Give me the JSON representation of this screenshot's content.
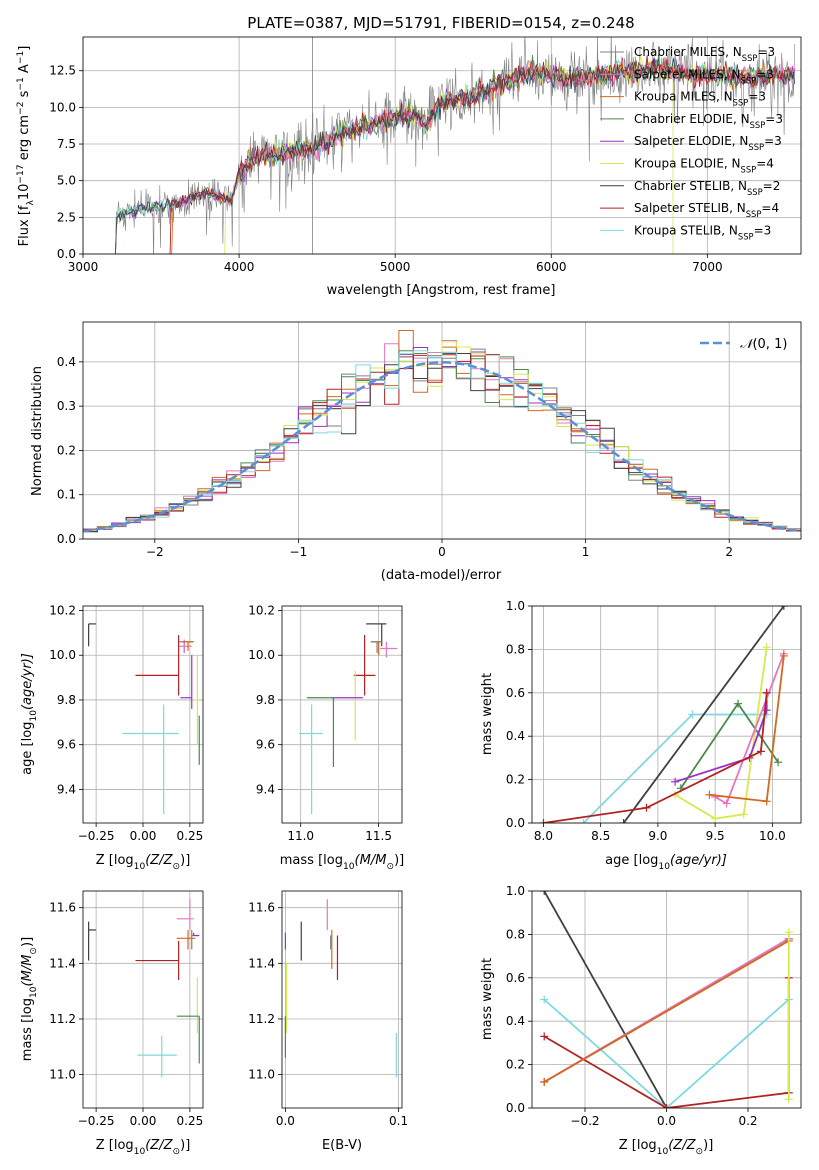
{
  "chart_data": [
    {
      "id": "spectrum",
      "type": "line",
      "title": "PLATE=0387, MJD=51791, FIBERID=0154, z=0.248",
      "xlabel": "wavelength [Angstrom, rest frame]",
      "ylabel": "Flux [f",
      "ylabel_sub": "λ",
      "ylabel_tail": "10",
      "ylabel_sup": "−17",
      "ylabel_end": " erg cm",
      "ylabel_sup2": "−2",
      "ylabel_end2": " s",
      "ylabel_sup3": "−1",
      "ylabel_end3": " A",
      "ylabel_sup4": "−1",
      "ylabel_close": "]",
      "xlim": [
        3000,
        7600
      ],
      "ylim": [
        0,
        14.8
      ],
      "xticks": [
        3000,
        4000,
        5000,
        6000,
        7000
      ],
      "yticks": [
        0.0,
        2.5,
        5.0,
        7.5,
        10.0,
        12.5
      ],
      "ytick_labels": [
        "0.0",
        "2.5",
        "5.0",
        "7.5",
        "10.0",
        "12.5"
      ],
      "continuum": [
        [
          3200,
          2.6
        ],
        [
          3400,
          3.1
        ],
        [
          3600,
          3.5
        ],
        [
          3800,
          4.2
        ],
        [
          3950,
          3.6
        ],
        [
          4000,
          5.6
        ],
        [
          4100,
          6.6
        ],
        [
          4300,
          6.9
        ],
        [
          4500,
          7.3
        ],
        [
          4700,
          8.5
        ],
        [
          4900,
          9.0
        ],
        [
          5100,
          9.6
        ],
        [
          5200,
          8.8
        ],
        [
          5300,
          10.4
        ],
        [
          5500,
          10.7
        ],
        [
          5700,
          11.8
        ],
        [
          5900,
          12.4
        ],
        [
          6100,
          11.9
        ],
        [
          6300,
          12.2
        ],
        [
          6500,
          12.5
        ],
        [
          6700,
          12.7
        ],
        [
          6900,
          12.3
        ],
        [
          7100,
          12.2
        ],
        [
          7300,
          12.0
        ],
        [
          7500,
          12.3
        ]
      ],
      "spike_wavelength": 4470,
      "series": [
        {
          "name": "Chabrier MILES, N",
          "sub": "SSP",
          "tail": "=3",
          "color": "#808080"
        },
        {
          "name": "Salpeter MILES, N",
          "sub": "SSP",
          "tail": "=3",
          "color": "#e377c2"
        },
        {
          "name": "Kroupa MILES, N",
          "sub": "SSP",
          "tail": "=3",
          "color": "#d2691e"
        },
        {
          "name": "Chabrier ELODIE, N",
          "sub": "SSP",
          "tail": "=3",
          "color": "#4a8a4a"
        },
        {
          "name": "Salpeter ELODIE, N",
          "sub": "SSP",
          "tail": "=3",
          "color": "#9b30c8"
        },
        {
          "name": "Kroupa ELODIE, N",
          "sub": "SSP",
          "tail": "=4",
          "color": "#d8e84e"
        },
        {
          "name": "Chabrier STELIB, N",
          "sub": "SSP",
          "tail": "=2",
          "color": "#404040"
        },
        {
          "name": "Salpeter STELIB, N",
          "sub": "SSP",
          "tail": "=4",
          "color": "#b22222"
        },
        {
          "name": "Kroupa STELIB, N",
          "sub": "SSP",
          "tail": "=3",
          "color": "#7fd8e0"
        }
      ]
    },
    {
      "id": "residuals",
      "type": "histogram",
      "xlabel": "(data-model)/error",
      "ylabel": "Normed distribution",
      "xlim": [
        -2.5,
        2.5
      ],
      "ylim": [
        0,
        0.49
      ],
      "xticks": [
        -2,
        -1,
        0,
        1,
        2
      ],
      "xtick_labels": [
        "−2",
        "−1",
        "0",
        "1",
        "2"
      ],
      "yticks": [
        0.0,
        0.1,
        0.2,
        0.3,
        0.4
      ],
      "ytick_labels": [
        "0.0",
        "0.1",
        "0.2",
        "0.3",
        "0.4"
      ],
      "legend": "N(0,1)",
      "legend_script": "𝒩",
      "legend_args": "(0, 1)",
      "legend_color": "#5b8fd6",
      "bin_width": 0.1
    },
    {
      "id": "age_vs_Z",
      "type": "errorbar",
      "xlabel": "Z [log",
      "xlabel_sub": "10",
      "xlabel_tail": "(Z/Z",
      "xlabel_sub2": "⊙",
      "xlabel_close": ")]",
      "ylabel": "age  [log",
      "ylabel_sub": "10",
      "ylabel_tail": "(age/yr)]",
      "xlim": [
        -0.32,
        0.32
      ],
      "ylim": [
        9.25,
        10.22
      ],
      "xticks": [
        -0.25,
        0.0,
        0.25
      ],
      "xtick_labels": [
        "−0.25",
        "0.00",
        "0.25"
      ],
      "yticks": [
        9.4,
        9.6,
        9.8,
        10.0,
        10.2
      ],
      "ytick_labels": [
        "9.4",
        "9.6",
        "9.8",
        "10.0",
        "10.2"
      ],
      "points": [
        {
          "x": -0.29,
          "xerr": [
            0.0,
            0.04
          ],
          "y": 10.14,
          "yerr": [
            0.1,
            0.0
          ],
          "color": "#404040"
        },
        {
          "x": 0.22,
          "xerr": [
            0.03,
            0.05
          ],
          "y": 10.06,
          "yerr": [
            0.05,
            0.0
          ],
          "color": "#808080"
        },
        {
          "x": 0.22,
          "xerr": [
            0.03,
            0.04
          ],
          "y": 10.04,
          "yerr": [
            0.03,
            0.03
          ],
          "color": "#e377c2"
        },
        {
          "x": 0.24,
          "xerr": [
            0.03,
            0.03
          ],
          "y": 10.06,
          "yerr": [
            0.04,
            0.0
          ],
          "color": "#d2691e"
        },
        {
          "x": 0.19,
          "xerr": [
            0.23,
            0.0
          ],
          "y": 9.91,
          "yerr": [
            0.09,
            0.18
          ],
          "color": "#b22222"
        },
        {
          "x": 0.26,
          "xerr": [
            0.06,
            0.0
          ],
          "y": 9.81,
          "yerr": [
            0.05,
            0.19
          ],
          "color": "#9b30c8"
        },
        {
          "x": 0.29,
          "xerr": [
            0.02,
            0.01
          ],
          "y": 9.8,
          "yerr": [
            0.2,
            0.2
          ],
          "color": "#d8e84e"
        },
        {
          "x": 0.3,
          "xerr": [
            0.0,
            0.0
          ],
          "y": 9.73,
          "yerr": [
            0.22,
            0.0
          ],
          "color": "#4a8a4a"
        },
        {
          "x": 0.11,
          "xerr": [
            0.22,
            0.08
          ],
          "y": 9.65,
          "yerr": [
            0.36,
            0.13
          ],
          "color": "#7fd8e0"
        }
      ]
    },
    {
      "id": "age_vs_mass",
      "type": "errorbar",
      "xlabel": "mass [log",
      "xlabel_sub": "10",
      "xlabel_tail": "(M/M",
      "xlabel_sub2": "⊙",
      "xlabel_close": ")]",
      "xlim": [
        10.88,
        11.65
      ],
      "ylim": [
        9.25,
        10.22
      ],
      "xticks": [
        11.0,
        11.5
      ],
      "xtick_labels": [
        "11.0",
        "11.5"
      ],
      "yticks": [
        9.4,
        9.6,
        9.8,
        10.0,
        10.2
      ],
      "ytick_labels": [
        "9.4",
        "9.6",
        "9.8",
        "10.0",
        "10.2"
      ],
      "points": [
        {
          "x": 11.52,
          "xerr": [
            0.1,
            0.03
          ],
          "y": 10.14,
          "yerr": [
            0.1,
            0.0
          ],
          "color": "#404040"
        },
        {
          "x": 11.55,
          "xerr": [
            0.04,
            0.07
          ],
          "y": 10.03,
          "yerr": [
            0.04,
            0.03
          ],
          "color": "#e377c2"
        },
        {
          "x": 11.5,
          "xerr": [
            0.05,
            0.02
          ],
          "y": 10.06,
          "yerr": [
            0.06,
            0.0
          ],
          "color": "#d2691e"
        },
        {
          "x": 11.49,
          "xerr": [
            0.04,
            0.03
          ],
          "y": 10.06,
          "yerr": [
            0.05,
            0.0
          ],
          "color": "#808080"
        },
        {
          "x": 11.41,
          "xerr": [
            0.07,
            0.07
          ],
          "y": 9.91,
          "yerr": [
            0.09,
            0.18
          ],
          "color": "#b22222"
        },
        {
          "x": 11.35,
          "xerr": [
            0.0,
            0.0
          ],
          "y": 9.93,
          "yerr": [
            0.31,
            0.0
          ],
          "color": "#d8e84e"
        },
        {
          "x": 11.3,
          "xerr": [
            0.1,
            0.1
          ],
          "y": 9.81,
          "yerr": [
            0.0,
            0.0
          ],
          "color": "#9b30c8"
        },
        {
          "x": 11.21,
          "xerr": [
            0.17,
            0.0
          ],
          "y": 9.81,
          "yerr": [
            0.31,
            0.0
          ],
          "color": "#4a8a4a"
        },
        {
          "x": 11.07,
          "xerr": [
            0.08,
            0.07
          ],
          "y": 9.65,
          "yerr": [
            0.36,
            0.13
          ],
          "color": "#7fd8e0"
        }
      ]
    },
    {
      "id": "massweight_vs_age",
      "type": "line",
      "xlabel": "age  [log",
      "xlabel_sub": "10",
      "xlabel_tail": "(age/yr)]",
      "ylabel": "mass weight",
      "xlim": [
        7.9,
        10.25
      ],
      "ylim": [
        0,
        1.0
      ],
      "xticks": [
        8.0,
        8.5,
        9.0,
        9.5,
        10.0
      ],
      "xtick_labels": [
        "8.0",
        "8.5",
        "9.0",
        "9.5",
        "10.0"
      ],
      "yticks": [
        0.0,
        0.2,
        0.4,
        0.6,
        0.8,
        1.0
      ],
      "ytick_labels": [
        "0.0",
        "0.2",
        "0.4",
        "0.6",
        "0.8",
        "1.0"
      ],
      "series": [
        {
          "color": "#7fd8e0",
          "x": [
            8.35,
            9.3,
            9.95
          ],
          "y": [
            0.0,
            0.5,
            0.5
          ]
        },
        {
          "color": "#404040",
          "x": [
            8.7,
            10.1
          ],
          "y": [
            0.0,
            1.0
          ]
        },
        {
          "color": "#4a8a4a",
          "x": [
            9.2,
            9.7,
            10.05
          ],
          "y": [
            0.16,
            0.55,
            0.28
          ]
        },
        {
          "color": "#d8e84e",
          "x": [
            9.15,
            9.5,
            9.75,
            9.95
          ],
          "y": [
            0.13,
            0.02,
            0.04,
            0.81
          ]
        },
        {
          "color": "#9b30c8",
          "x": [
            9.15,
            9.8,
            9.95,
            9.95
          ],
          "y": [
            0.19,
            0.3,
            0.52,
            0.6
          ]
        },
        {
          "color": "#e377c2",
          "x": [
            9.5,
            9.6,
            10.1
          ],
          "y": [
            0.12,
            0.09,
            0.78
          ]
        },
        {
          "color": "#d2691e",
          "x": [
            9.45,
            9.95,
            10.1
          ],
          "y": [
            0.13,
            0.1,
            0.77
          ]
        },
        {
          "color": "#b22222",
          "x": [
            8.0,
            8.9,
            9.9,
            9.95
          ],
          "y": [
            0.0,
            0.07,
            0.33,
            0.6
          ]
        }
      ]
    },
    {
      "id": "mass_vs_Z",
      "type": "errorbar",
      "xlabel": "Z [log",
      "xlabel_sub": "10",
      "xlabel_tail": "(Z/Z",
      "xlabel_sub2": "⊙",
      "xlabel_close": ")]",
      "ylabel": "mass [log",
      "ylabel_sub": "10",
      "ylabel_tail": "(M/M",
      "ylabel_sub2": "⊙",
      "ylabel_close": ")]",
      "xlim": [
        -0.32,
        0.32
      ],
      "ylim": [
        10.88,
        11.66
      ],
      "xticks": [
        -0.25,
        0.0,
        0.25
      ],
      "xtick_labels": [
        "−0.25",
        "0.00",
        "0.25"
      ],
      "yticks": [
        11.0,
        11.2,
        11.4,
        11.6
      ],
      "ytick_labels": [
        "11.0",
        "11.2",
        "11.4",
        "11.6"
      ],
      "points": [
        {
          "x": -0.29,
          "xerr": [
            0.0,
            0.04
          ],
          "y": 11.52,
          "yerr": [
            0.11,
            0.03
          ],
          "color": "#404040"
        },
        {
          "x": 0.25,
          "xerr": [
            0.07,
            0.02
          ],
          "y": 11.56,
          "yerr": [
            0.04,
            0.07
          ],
          "color": "#e377c2"
        },
        {
          "x": 0.26,
          "xerr": [
            0.0,
            0.04
          ],
          "y": 11.5,
          "yerr": [
            0.05,
            0.02
          ],
          "color": "#808080"
        },
        {
          "x": 0.24,
          "xerr": [
            0.06,
            0.04
          ],
          "y": 11.49,
          "yerr": [
            0.04,
            0.03
          ],
          "color": "#d2691e"
        },
        {
          "x": 0.27,
          "xerr": [
            0.0,
            0.03
          ],
          "y": 11.5,
          "yerr": [
            0.0,
            0.01
          ],
          "color": "#9b30c8"
        },
        {
          "x": 0.19,
          "xerr": [
            0.23,
            0.0
          ],
          "y": 11.41,
          "yerr": [
            0.07,
            0.07
          ],
          "color": "#b22222"
        },
        {
          "x": 0.29,
          "xerr": [
            0.0,
            0.0
          ],
          "y": 11.35,
          "yerr": [
            0.2,
            0.0
          ],
          "color": "#d8e84e"
        },
        {
          "x": 0.24,
          "xerr": [
            0.06,
            0.06
          ],
          "y": 11.21,
          "yerr": [
            0.0,
            0.0
          ],
          "color": "#4a8a4a"
        },
        {
          "x": 0.3,
          "xerr": [
            0.0,
            0.0
          ],
          "y": 11.21,
          "yerr": [
            0.17,
            0.0
          ],
          "color": "#4a8a4a"
        },
        {
          "x": 0.1,
          "xerr": [
            0.13,
            0.08
          ],
          "y": 11.07,
          "yerr": [
            0.08,
            0.07
          ],
          "color": "#7fd8e0"
        }
      ]
    },
    {
      "id": "mass_vs_EBV",
      "type": "errorbar",
      "xlabel": "E(B-V)",
      "xlim": [
        -0.003,
        0.103
      ],
      "ylim": [
        10.88,
        11.66
      ],
      "xticks": [
        0.0,
        0.1
      ],
      "xtick_labels": [
        "0.0",
        "0.1"
      ],
      "yticks": [
        11.0,
        11.2,
        11.4,
        11.6
      ],
      "ytick_labels": [
        "11.0",
        "11.2",
        "11.4",
        "11.6"
      ],
      "points": [
        {
          "x": 0.0,
          "y": 11.48,
          "yerr": [
            0.03,
            0.03
          ],
          "color": "#9b30c8"
        },
        {
          "x": 0.001,
          "y": 11.35,
          "yerr": [
            0.2,
            0.05
          ],
          "color": "#d8e84e"
        },
        {
          "x": 0.0,
          "y": 11.21,
          "yerr": [
            0.15,
            0.0
          ],
          "color": "#4a8a4a"
        },
        {
          "x": 0.014,
          "y": 11.52,
          "yerr": [
            0.11,
            0.03
          ],
          "color": "#404040"
        },
        {
          "x": 0.037,
          "y": 11.56,
          "yerr": [
            0.04,
            0.07
          ],
          "color": "#e377c2"
        },
        {
          "x": 0.04,
          "y": 11.5,
          "yerr": [
            0.05,
            0.0
          ],
          "color": "#808080"
        },
        {
          "x": 0.041,
          "y": 11.45,
          "yerr": [
            0.07,
            0.07
          ],
          "color": "#d2691e"
        },
        {
          "x": 0.046,
          "y": 11.41,
          "yerr": [
            0.07,
            0.09
          ],
          "color": "#b22222"
        },
        {
          "x": 0.098,
          "y": 11.07,
          "yerr": [
            0.08,
            0.08
          ],
          "color": "#7fd8e0"
        }
      ]
    },
    {
      "id": "massweight_vs_Z",
      "type": "line",
      "xlabel": "Z [log",
      "xlabel_sub": "10",
      "xlabel_tail": "(Z/Z",
      "xlabel_sub2": "⊙",
      "xlabel_close": ")]",
      "ylabel": "mass weight",
      "xlim": [
        -0.33,
        0.33
      ],
      "ylim": [
        0,
        1.0
      ],
      "xticks": [
        -0.2,
        0.0,
        0.2
      ],
      "xtick_labels": [
        "−0.2",
        "0.0",
        "0.2"
      ],
      "yticks": [
        0.0,
        0.2,
        0.4,
        0.6,
        0.8,
        1.0
      ],
      "ytick_labels": [
        "0.0",
        "0.2",
        "0.4",
        "0.6",
        "0.8",
        "1.0"
      ],
      "series": [
        {
          "color": "#404040",
          "x": [
            -0.3,
            0.0
          ],
          "y": [
            1.0,
            0.0
          ]
        },
        {
          "color": "#7fd8e0",
          "x": [
            -0.3,
            0.0,
            0.3
          ],
          "y": [
            0.5,
            0.0,
            0.5
          ]
        },
        {
          "color": "#b22222",
          "x": [
            -0.3,
            0.0,
            0.3,
            0.3
          ],
          "y": [
            0.33,
            0.0,
            0.07,
            0.6
          ]
        },
        {
          "color": "#9b30c8",
          "x": [
            -0.3,
            0.3
          ],
          "y": [
            0.12,
            0.78
          ]
        },
        {
          "color": "#e377c2",
          "x": [
            -0.3,
            0.3
          ],
          "y": [
            0.12,
            0.78
          ]
        },
        {
          "color": "#d2691e",
          "x": [
            -0.3,
            0.3
          ],
          "y": [
            0.12,
            0.77
          ]
        },
        {
          "color": "#d8e84e",
          "x": [
            0.3,
            0.3
          ],
          "y": [
            0.04,
            0.81
          ]
        }
      ]
    }
  ]
}
